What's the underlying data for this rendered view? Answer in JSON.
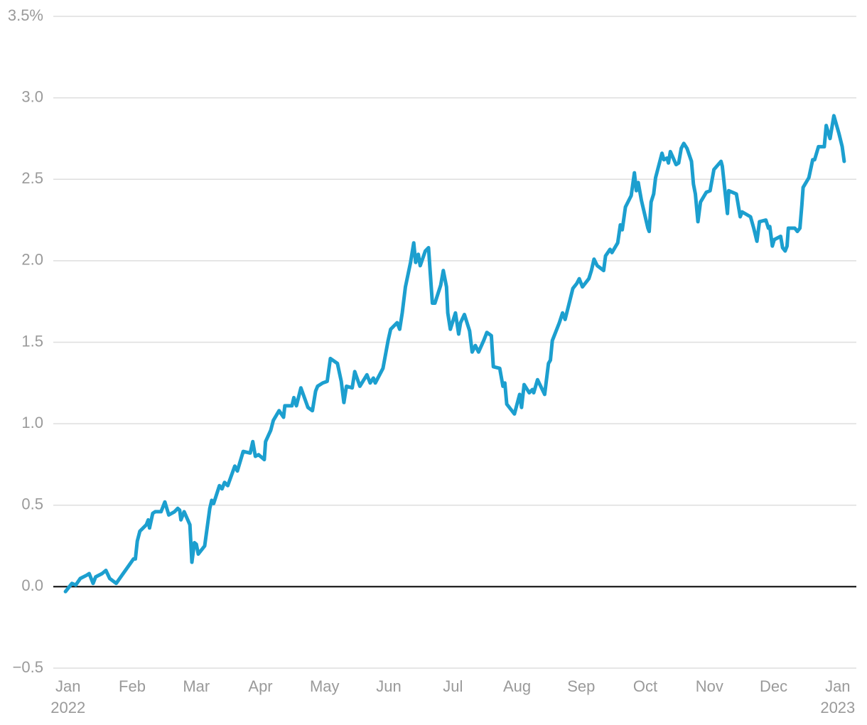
{
  "chart_data": {
    "type": "line",
    "x": [
      -0.04,
      0.06,
      0.12,
      0.19,
      0.29,
      0.33,
      0.39,
      0.43,
      0.53,
      0.59,
      0.65,
      0.75,
      0.84,
      0.93,
      1.02,
      1.05,
      1.08,
      1.12,
      1.22,
      1.25,
      1.27,
      1.32,
      1.36,
      1.45,
      1.51,
      1.57,
      1.66,
      1.71,
      1.74,
      1.76,
      1.81,
      1.9,
      1.93,
      1.97,
      2.0,
      2.03,
      2.13,
      2.21,
      2.24,
      2.27,
      2.36,
      2.4,
      2.44,
      2.49,
      2.6,
      2.64,
      2.73,
      2.84,
      2.88,
      2.92,
      2.97,
      3.06,
      3.08,
      3.16,
      3.2,
      3.29,
      3.36,
      3.38,
      3.49,
      3.52,
      3.56,
      3.63,
      3.74,
      3.81,
      3.86,
      3.89,
      3.97,
      4.04,
      4.09,
      4.2,
      4.26,
      4.3,
      4.34,
      4.43,
      4.47,
      4.55,
      4.66,
      4.71,
      4.76,
      4.79,
      4.91,
      4.99,
      5.03,
      5.13,
      5.17,
      5.21,
      5.26,
      5.34,
      5.39,
      5.42,
      5.46,
      5.49,
      5.57,
      5.62,
      5.68,
      5.72,
      5.81,
      5.85,
      5.9,
      5.92,
      5.96,
      6.04,
      6.09,
      6.12,
      6.18,
      6.26,
      6.3,
      6.35,
      6.4,
      6.48,
      6.53,
      6.6,
      6.63,
      6.73,
      6.78,
      6.81,
      6.84,
      6.9,
      6.96,
      7.04,
      7.07,
      7.11,
      7.19,
      7.24,
      7.26,
      7.32,
      7.43,
      7.49,
      7.52,
      7.55,
      7.66,
      7.71,
      7.75,
      7.8,
      7.87,
      7.93,
      7.97,
      8.02,
      8.12,
      8.16,
      8.2,
      8.25,
      8.35,
      8.38,
      8.45,
      8.48,
      8.57,
      8.61,
      8.64,
      8.69,
      8.78,
      8.83,
      8.86,
      8.89,
      8.94,
      9.04,
      9.06,
      9.09,
      9.13,
      9.16,
      9.26,
      9.29,
      9.34,
      9.36,
      9.39,
      9.48,
      9.52,
      9.56,
      9.6,
      9.65,
      9.72,
      9.75,
      9.78,
      9.82,
      9.86,
      9.95,
      10.01,
      10.07,
      10.18,
      10.2,
      10.23,
      10.28,
      10.3,
      10.42,
      10.48,
      10.51,
      10.64,
      10.69,
      10.74,
      10.78,
      10.88,
      10.92,
      10.94,
      10.98,
      11.01,
      11.11,
      11.14,
      11.18,
      11.21,
      11.23,
      11.33,
      11.37,
      11.41,
      11.44,
      11.46,
      11.55,
      11.61,
      11.64,
      11.7,
      11.79,
      11.82,
      11.88,
      11.94,
      12.02,
      12.07,
      12.1
    ],
    "values": [
      -0.03,
      0.02,
      0.01,
      0.05,
      0.07,
      0.08,
      0.02,
      0.06,
      0.08,
      0.1,
      0.05,
      0.02,
      0.07,
      0.12,
      0.17,
      0.17,
      0.28,
      0.34,
      0.38,
      0.41,
      0.36,
      0.45,
      0.46,
      0.46,
      0.52,
      0.44,
      0.46,
      0.48,
      0.47,
      0.41,
      0.46,
      0.38,
      0.15,
      0.27,
      0.26,
      0.2,
      0.25,
      0.48,
      0.53,
      0.51,
      0.62,
      0.6,
      0.64,
      0.62,
      0.74,
      0.71,
      0.83,
      0.82,
      0.89,
      0.8,
      0.81,
      0.78,
      0.89,
      0.96,
      1.02,
      1.08,
      1.04,
      1.11,
      1.11,
      1.16,
      1.11,
      1.22,
      1.1,
      1.08,
      1.2,
      1.23,
      1.25,
      1.26,
      1.4,
      1.37,
      1.26,
      1.13,
      1.23,
      1.22,
      1.32,
      1.23,
      1.3,
      1.25,
      1.28,
      1.25,
      1.34,
      1.51,
      1.58,
      1.62,
      1.58,
      1.68,
      1.84,
      1.99,
      2.11,
      1.99,
      2.04,
      1.97,
      2.06,
      2.08,
      1.74,
      1.74,
      1.85,
      1.94,
      1.84,
      1.68,
      1.58,
      1.68,
      1.55,
      1.62,
      1.67,
      1.57,
      1.44,
      1.48,
      1.44,
      1.51,
      1.56,
      1.54,
      1.35,
      1.34,
      1.23,
      1.25,
      1.12,
      1.09,
      1.06,
      1.18,
      1.1,
      1.24,
      1.19,
      1.21,
      1.19,
      1.27,
      1.18,
      1.37,
      1.39,
      1.51,
      1.62,
      1.68,
      1.64,
      1.72,
      1.83,
      1.86,
      1.89,
      1.84,
      1.89,
      1.94,
      2.01,
      1.97,
      1.94,
      2.03,
      2.07,
      2.05,
      2.11,
      2.22,
      2.19,
      2.33,
      2.4,
      2.54,
      2.43,
      2.48,
      2.37,
      2.2,
      2.18,
      2.36,
      2.41,
      2.51,
      2.66,
      2.62,
      2.63,
      2.6,
      2.67,
      2.59,
      2.6,
      2.69,
      2.72,
      2.69,
      2.61,
      2.47,
      2.41,
      2.24,
      2.36,
      2.42,
      2.43,
      2.56,
      2.61,
      2.58,
      2.47,
      2.29,
      2.43,
      2.41,
      2.27,
      2.3,
      2.27,
      2.2,
      2.12,
      2.24,
      2.25,
      2.2,
      2.21,
      2.09,
      2.13,
      2.15,
      2.08,
      2.06,
      2.09,
      2.2,
      2.2,
      2.18,
      2.2,
      2.34,
      2.45,
      2.51,
      2.62,
      2.62,
      2.7,
      2.7,
      2.83,
      2.75,
      2.89,
      2.78,
      2.7,
      2.61
    ],
    "color": "#1c9fcf",
    "xlim": [
      -0.23,
      12.29
    ],
    "xticks": [
      {
        "value": 0,
        "label": "Jan\n2022"
      },
      {
        "value": 1,
        "label": "Feb"
      },
      {
        "value": 2,
        "label": "Mar"
      },
      {
        "value": 3,
        "label": "Apr"
      },
      {
        "value": 4,
        "label": "May"
      },
      {
        "value": 5,
        "label": "Jun"
      },
      {
        "value": 6,
        "label": "Jul"
      },
      {
        "value": 7,
        "label": "Aug"
      },
      {
        "value": 8,
        "label": "Sep"
      },
      {
        "value": 9,
        "label": "Oct"
      },
      {
        "value": 10,
        "label": "Nov"
      },
      {
        "value": 11,
        "label": "Dec"
      },
      {
        "value": 12,
        "label": "Jan\n2023"
      }
    ],
    "ylim": [
      -0.5,
      3.5
    ],
    "yticks": [
      {
        "value": -0.5,
        "label": "−0.5"
      },
      {
        "value": 0,
        "label": "0.0"
      },
      0.5,
      {
        "value": 1,
        "label": "1.0"
      },
      1.5,
      {
        "value": 2,
        "label": "2.0"
      },
      2.5,
      {
        "value": 3,
        "label": "3.0"
      },
      {
        "value": 3.5,
        "label": "3.5%"
      }
    ],
    "grid": true
  }
}
